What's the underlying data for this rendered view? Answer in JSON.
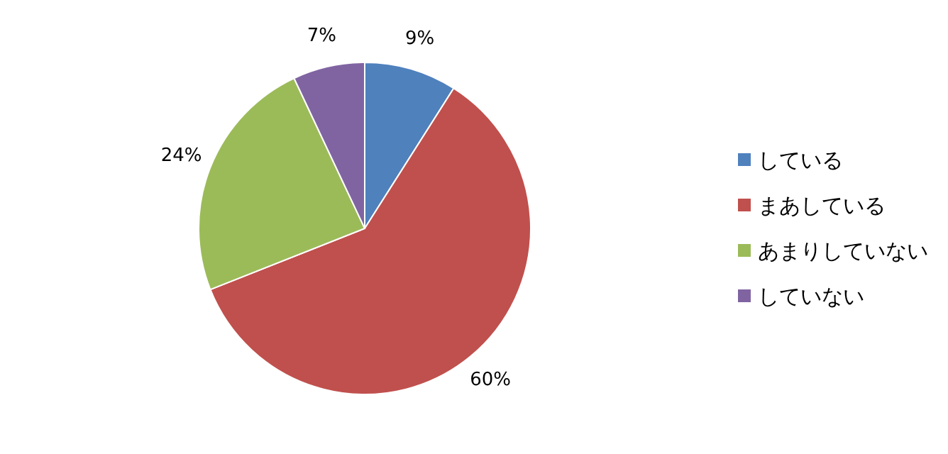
{
  "chart_data": {
    "type": "pie",
    "categories": [
      "している",
      "まあしている",
      "あまりしていない",
      "していない"
    ],
    "values": [
      9,
      60,
      24,
      7
    ],
    "colors": [
      "#4f81bd",
      "#c0504d",
      "#9bbb59",
      "#8064a2"
    ],
    "value_labels": [
      "9%",
      "60%",
      "24%",
      "7%"
    ],
    "legend": "right"
  }
}
